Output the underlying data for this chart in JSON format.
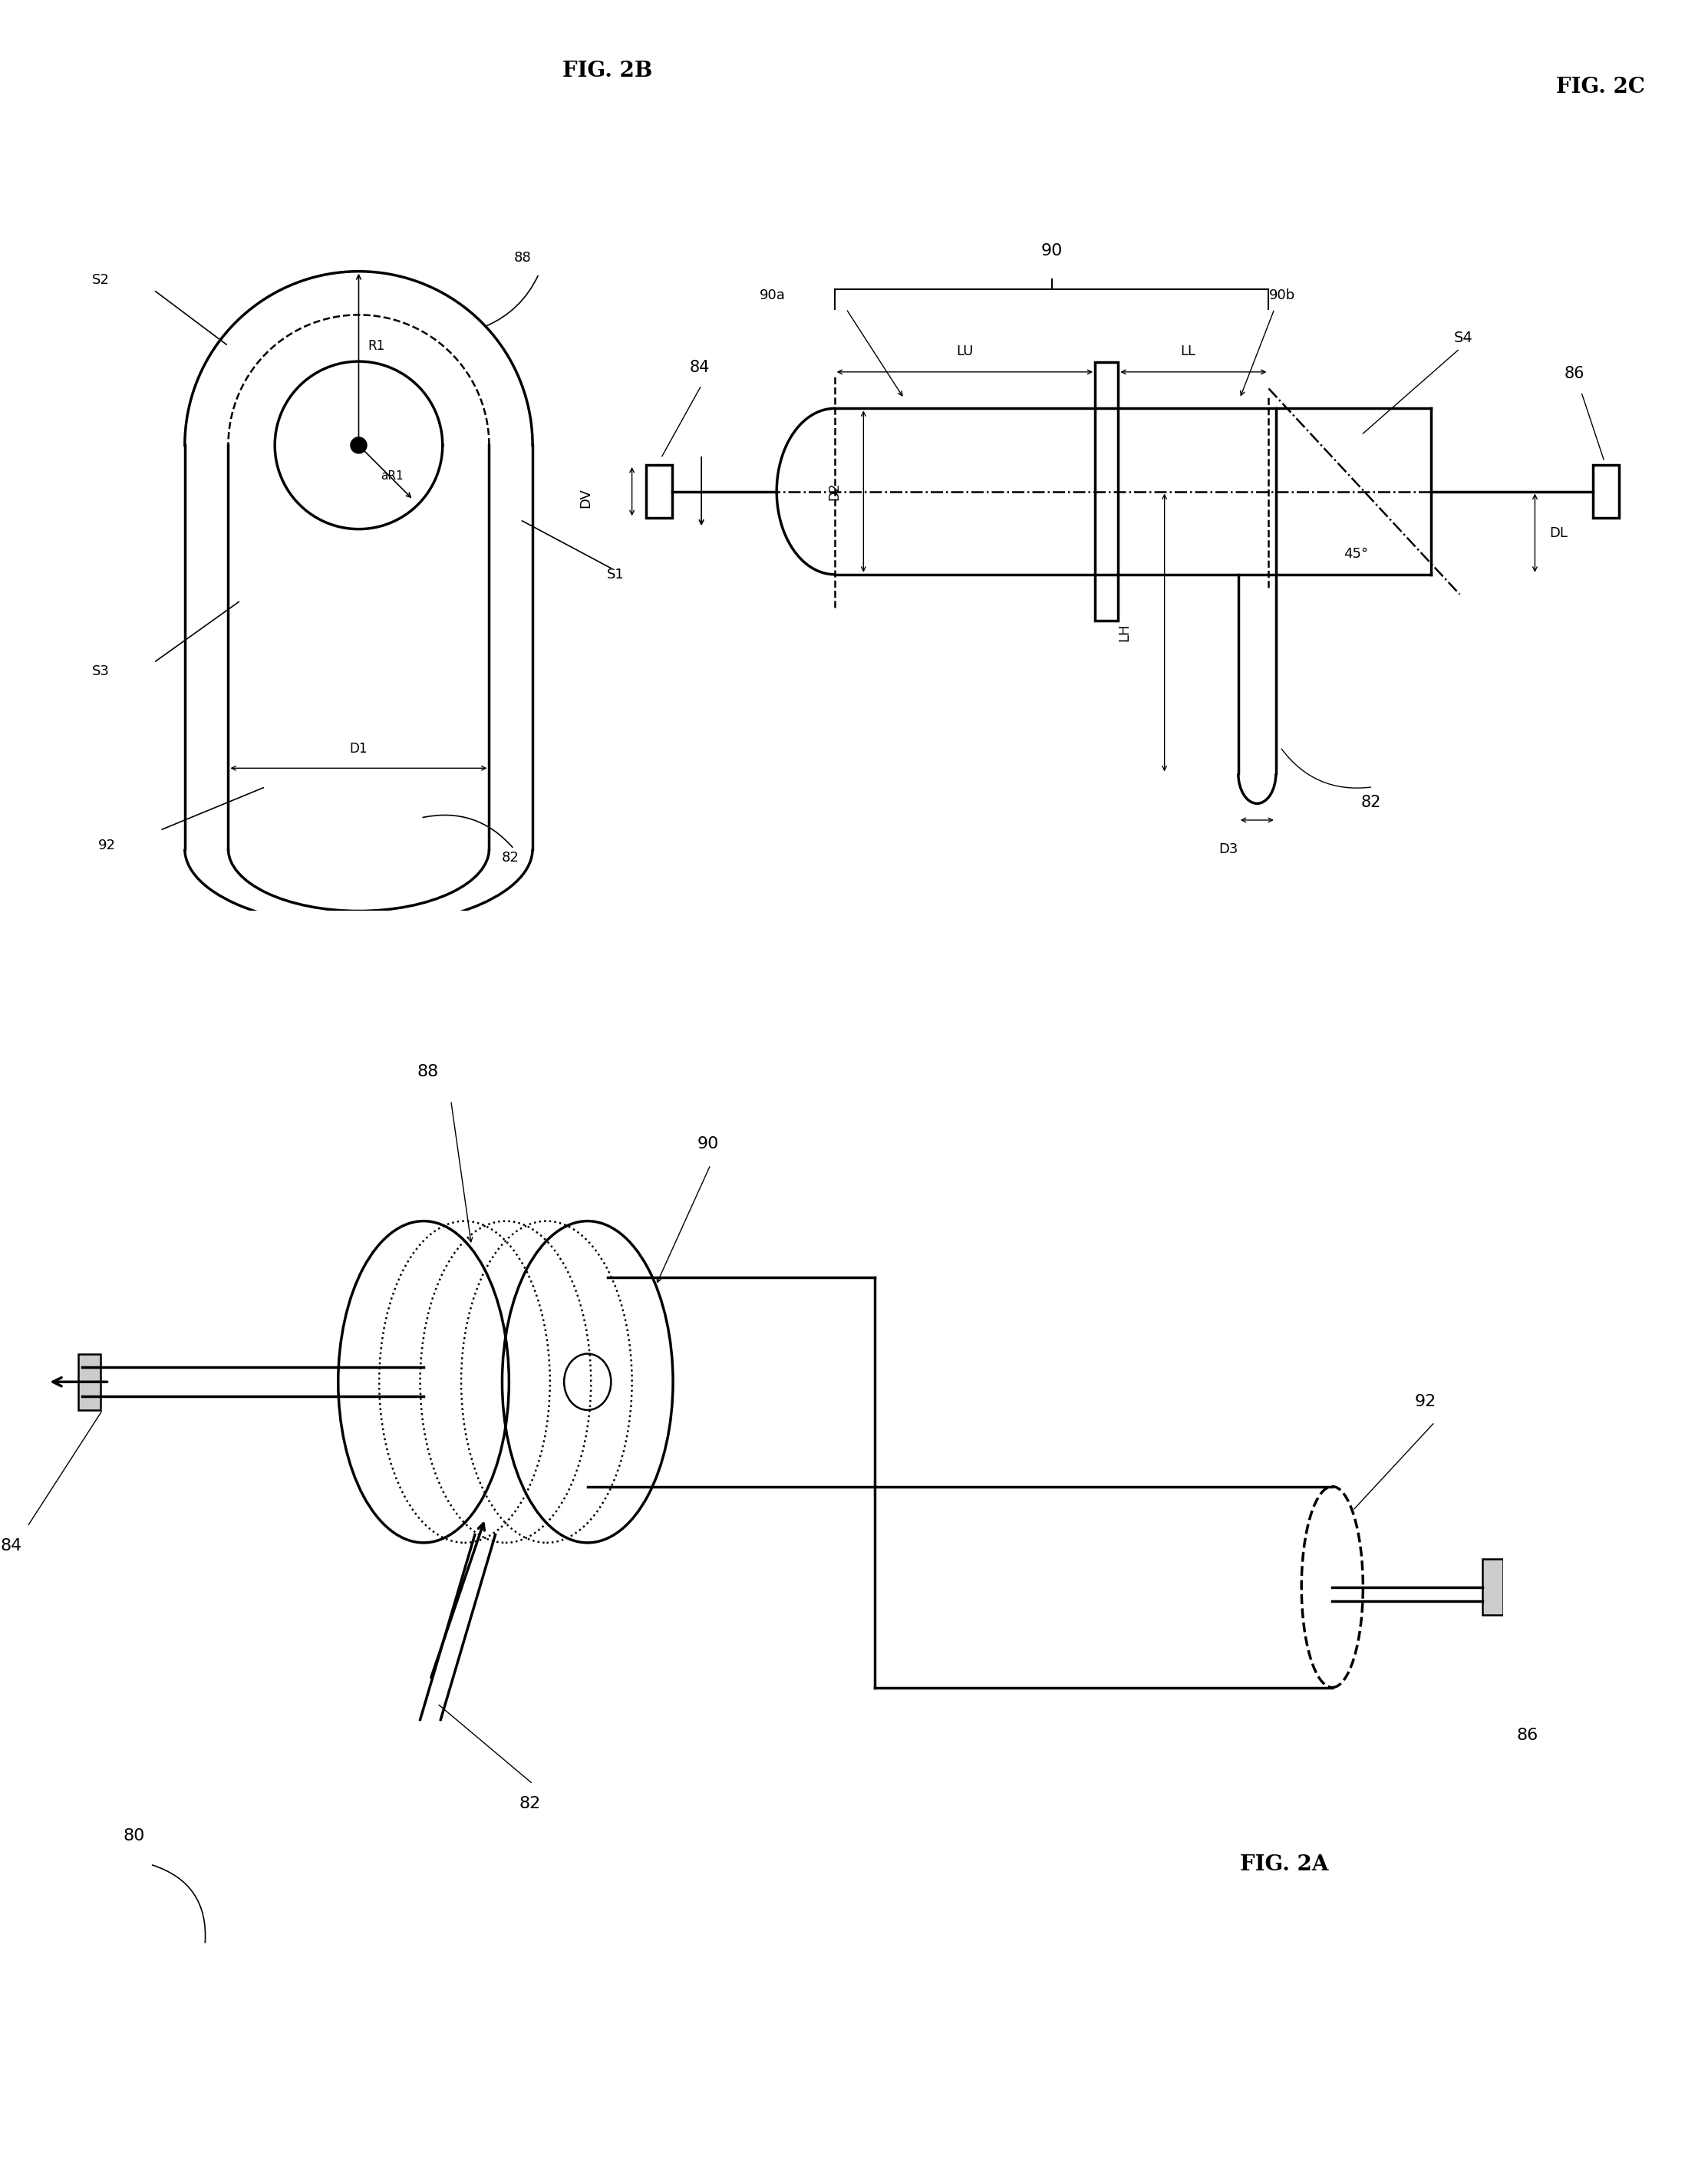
{
  "bg_color": "#ffffff",
  "lc": "#000000",
  "fig_width": 22.26,
  "fig_height": 28.22,
  "fig2b_label": "FIG. 2B",
  "fig2c_label": "FIG. 2C",
  "fig2a_label": "FIG. 2A",
  "n80": "80",
  "n82": "82",
  "n84": "84",
  "n86": "86",
  "n88": "88",
  "n90": "90",
  "n90a": "90a",
  "n90b": "90b",
  "n92": "92",
  "R1": "R1",
  "aR1": "aR1",
  "S1": "S1",
  "S2": "S2",
  "S3": "S3",
  "S4": "S4",
  "D1": "D1",
  "D2": "D2",
  "D3": "D3",
  "DL": "DL",
  "DV": "DV",
  "LH": "LH",
  "LL": "LL",
  "LU": "LU",
  "deg45": "45°"
}
